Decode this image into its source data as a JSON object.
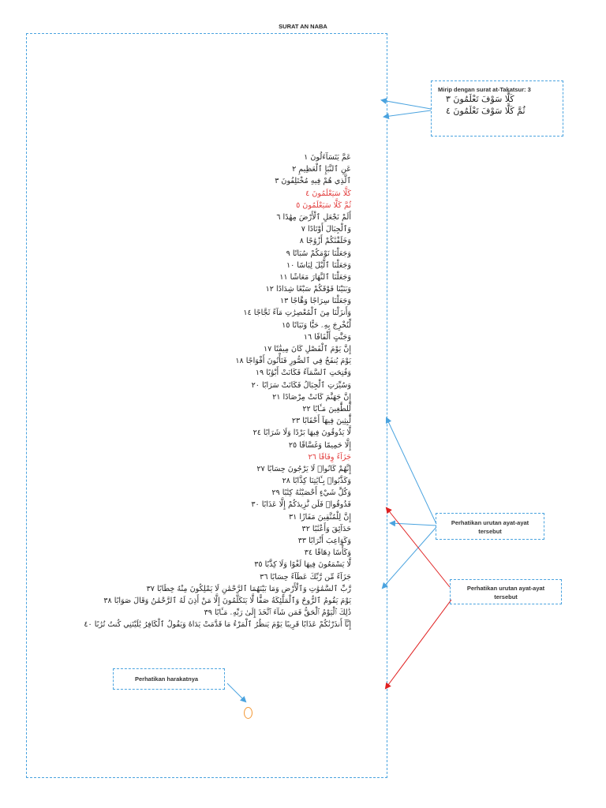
{
  "title": "SURAT AN NABA",
  "note_top": {
    "heading": "Mirip dengan surat at-Takatsur: 3",
    "lines": [
      "كَلَّا سَوْفَ تَعْلَمُونَ ٣",
      "ثُمَّ كَلَّا سَوْفَ تَعْلَمُونَ ٤"
    ]
  },
  "note_urutan_1": "Perhatikan urutan ayat-ayat tersebut",
  "note_urutan_2": "Perhatikan urutan ayat-ayat tersebut",
  "note_harakat": "Perhatikan harakatnya",
  "circle_mark": "O",
  "verses": [
    {
      "text": "عَمَّ يَتَسَآءَلُونَ ١",
      "red": false
    },
    {
      "text": "عَنِ ٱلنَّبَإِ ٱلْعَظِيمِ ٢",
      "red": false
    },
    {
      "text": "ٱلَّذِي هُمْ فِيهِ مُخْتَلِفُونَ ٣",
      "red": false
    },
    {
      "text": "كَلَّا سَيَعْلَمُونَ ٤",
      "red": true
    },
    {
      "text": "ثُمَّ كَلَّا سَيَعْلَمُونَ ٥",
      "red": true
    },
    {
      "text": "أَلَمْ نَجْعَلِ ٱلْأَرْضَ مِهَٰدًا ٦",
      "red": false
    },
    {
      "text": "وَٱلْجِبَالَ أَوْتَادًا ٧",
      "red": false
    },
    {
      "text": "وَخَلَقْنَٰكُمْ أَزْوَٰجًا ٨",
      "red": false
    },
    {
      "text": "وَجَعَلْنَا نَوْمَكُمْ سُبَاتًا ٩",
      "red": false
    },
    {
      "text": "وَجَعَلْنَا ٱلَّيْلَ لِبَاسًا ١٠",
      "red": false
    },
    {
      "text": "وَجَعَلْنَا ٱلنَّهَارَ مَعَاشًا ١١",
      "red": false
    },
    {
      "text": "وَبَنَيْنَا فَوْقَكُمْ سَبْعًا شِدَادًا ١٢",
      "red": false
    },
    {
      "text": "وَجَعَلْنَا سِرَاجًا وَهَّاجًا ١٣",
      "red": false
    },
    {
      "text": "وَأَنزَلْنَا مِنَ ٱلْمُعْصِرَٰتِ مَآءً ثَجَّاجًا ١٤",
      "red": false
    },
    {
      "text": "لِّنُخْرِجَ بِهِۦ حَبًّا وَنَبَاتًا ١٥",
      "red": false
    },
    {
      "text": "وَجَنَّٰتٍ أَلْفَافًا ١٦",
      "red": false
    },
    {
      "text": "إِنَّ يَوْمَ ٱلْفَصْلِ كَانَ مِيقَٰتًا ١٧",
      "red": false
    },
    {
      "text": "يَوْمَ يُنفَخُ فِي ٱلصُّورِ فَتَأْتُونَ أَفْوَاجًا ١٨",
      "red": false
    },
    {
      "text": "وَفُتِحَتِ ٱلسَّمَآءُ فَكَانَتْ أَبْوَٰبًا ١٩",
      "red": false
    },
    {
      "text": "وَسُيِّرَتِ ٱلْجِبَالُ فَكَانَتْ سَرَابًا ٢٠",
      "red": false
    },
    {
      "text": "إِنَّ جَهَنَّمَ كَانَتْ مِرْصَادًا ٢١",
      "red": false
    },
    {
      "text": "لِّلطَّٰغِينَ مَـَٔابًا ٢٢",
      "red": false
    },
    {
      "text": "لَّٰبِثِينَ فِيهَآ أَحْقَابًا ٢٣",
      "red": false
    },
    {
      "text": "لَّا يَذُوقُونَ فِيهَا بَرْدًا وَلَا شَرَابًا ٢٤",
      "red": false
    },
    {
      "text": "إِلَّا حَمِيمًا وَغَسَّاقًا ٢٥",
      "red": false
    },
    {
      "text": "جَزَآءً وِفَاقًا ٢٦",
      "red": true
    },
    {
      "text": "إِنَّهُمْ كَانُوا۟ لَا يَرْجُونَ حِسَابًا ٢٧",
      "red": false
    },
    {
      "text": "وَكَذَّبُوا۟ بِـَٔايَٰتِنَا كِذَّابًا ٢٨",
      "red": false
    },
    {
      "text": "وَكُلَّ شَيْءٍ أَحْصَيْنَٰهُ كِتَٰبًا ٢٩",
      "red": false
    },
    {
      "text": "فَذُوقُوا۟ فَلَن نَّزِيدَكُمْ إِلَّا عَذَابًا ٣٠",
      "red": false
    },
    {
      "text": "إِنَّ لِلْمُتَّقِينَ مَفَازًا ٣١",
      "red": false
    },
    {
      "text": "حَدَآئِقَ وَأَعْنَٰبًا ٣٢",
      "red": false
    },
    {
      "text": "وَكَوَاعِبَ أَتْرَابًا ٣٣",
      "red": false
    },
    {
      "text": "وَكَأْسًا دِهَاقًا ٣٤",
      "red": false
    },
    {
      "text": "لَّا يَسْمَعُونَ فِيهَا لَغْوًا وَلَا كِذَّٰبًا ٣٥",
      "red": false
    },
    {
      "text": "جَزَآءً مِّن رَّبِّكَ عَطَآءً حِسَابًا ٣٦",
      "red": false
    },
    {
      "text": "رَّبِّ ٱلسَّمَٰوَٰتِ وَٱلْأَرْضِ وَمَا بَيْنَهُمَا ٱلرَّحْمَٰنِ لَا يَمْلِكُونَ مِنْهُ خِطَابًا ٣٧",
      "red": false
    },
    {
      "text": "يَوْمَ يَقُومُ ٱلرُّوحُ وَٱلْمَلَٰٓئِكَةُ صَفًّا لَّا يَتَكَلَّمُونَ إِلَّا مَنْ أَذِنَ لَهُ ٱلرَّحْمَٰنُ وَقَالَ صَوَابًا ٣٨",
      "red": false
    },
    {
      "text": "ذَٰلِكَ ٱلْيَوْمُ ٱلْحَقُّ فَمَن شَآءَ ٱتَّخَذَ إِلَىٰ رَبِّهِۦ مَـَٔابًا ٣٩",
      "red": false
    },
    {
      "text": "إِنَّآ أَنذَرْنَٰكُمْ عَذَابًا قَرِيبًا يَوْمَ يَنظُرُ ٱلْمَرْءُ مَا قَدَّمَتْ يَدَاهُ وَيَقُولُ ٱلْكَافِرُ يَٰلَيْتَنِي كُنتُ تُرَٰبًا ٤٠",
      "red": false
    }
  ]
}
